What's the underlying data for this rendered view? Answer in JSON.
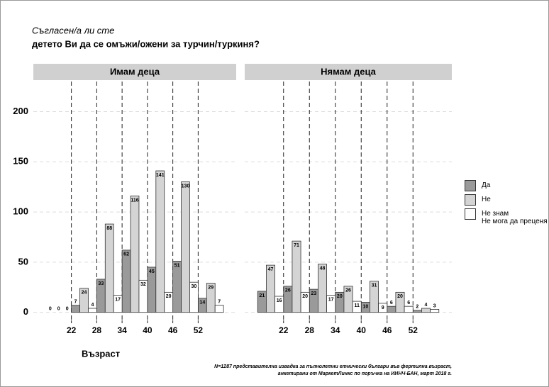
{
  "chart_data": {
    "type": "bar",
    "title": "Съгласен/а ли сте",
    "subtitle": "детето Ви да се омъжи/ожени за турчин/туркиня?",
    "x_label": "Възраст",
    "note": [
      "N=1287 представителна извадка за пълнолетни етнически българи във фертилна възраст,",
      "анкетирани от МаркетЛинкс по поръчка на ИИНЧ-БАН, март 2018 г."
    ],
    "x": [
      19,
      25,
      31,
      37,
      43,
      49,
      55
    ],
    "xlim": [
      13,
      61
    ],
    "xticks": [
      22,
      28,
      34,
      40,
      46,
      52
    ],
    "ylim": [
      -8,
      230
    ],
    "yticks": [
      0,
      50,
      100,
      150,
      200
    ],
    "grid": true,
    "series": [
      {
        "name": "Да",
        "color": "#9a9a9a"
      },
      {
        "name": "Не",
        "color": "#d4d4d4"
      },
      {
        "name": "Не знам\nНе мога да преценя",
        "color": "#ffffff"
      }
    ],
    "panels": [
      {
        "title": "Имам деца",
        "values": [
          [
            0,
            7,
            33,
            62,
            45,
            51,
            14
          ],
          [
            0,
            24,
            88,
            116,
            141,
            130,
            29
          ],
          [
            0,
            4,
            17,
            32,
            20,
            30,
            7
          ]
        ]
      },
      {
        "title": "Нямам деца",
        "values": [
          [
            21,
            26,
            23,
            20,
            10,
            6,
            2
          ],
          [
            47,
            71,
            48,
            26,
            31,
            20,
            4
          ],
          [
            16,
            20,
            17,
            11,
            9,
            6,
            3
          ]
        ]
      }
    ]
  }
}
